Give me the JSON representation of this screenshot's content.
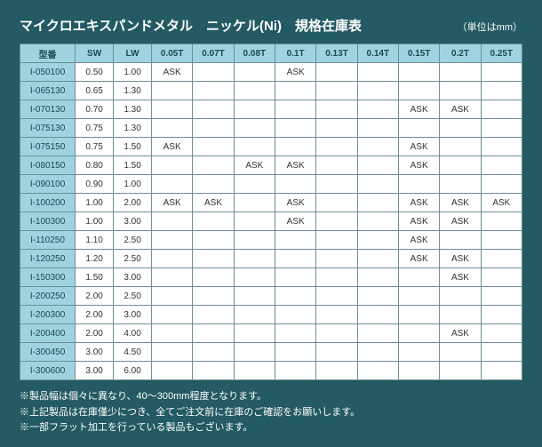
{
  "title": "マイクロエキスパンドメタル　ニッケル(Ni)　規格在庫表",
  "unit": "（単位はmm）",
  "headers": [
    "型番",
    "SW",
    "LW",
    "0.05T",
    "0.07T",
    "0.08T",
    "0.1T",
    "0.13T",
    "0.14T",
    "0.15T",
    "0.2T",
    "0.25T"
  ],
  "rows": [
    {
      "model": "I-050100",
      "sw": "0.50",
      "lw": "1.00",
      "t": [
        "ASK",
        "",
        "",
        "ASK",
        "",
        "",
        "",
        "",
        ""
      ]
    },
    {
      "model": "I-065130",
      "sw": "0.65",
      "lw": "1.30",
      "t": [
        "",
        "",
        "",
        "",
        "",
        "",
        "",
        "",
        ""
      ]
    },
    {
      "model": "I-070130",
      "sw": "0.70",
      "lw": "1.30",
      "t": [
        "",
        "",
        "",
        "",
        "",
        "",
        "ASK",
        "ASK",
        ""
      ]
    },
    {
      "model": "I-075130",
      "sw": "0.75",
      "lw": "1.30",
      "t": [
        "",
        "",
        "",
        "",
        "",
        "",
        "",
        "",
        ""
      ]
    },
    {
      "model": "I-075150",
      "sw": "0.75",
      "lw": "1.50",
      "t": [
        "ASK",
        "",
        "",
        "",
        "",
        "",
        "ASK",
        "",
        ""
      ]
    },
    {
      "model": "I-080150",
      "sw": "0.80",
      "lw": "1.50",
      "t": [
        "",
        "",
        "ASK",
        "ASK",
        "",
        "",
        "ASK",
        "",
        ""
      ]
    },
    {
      "model": "I-090100",
      "sw": "0.90",
      "lw": "1.00",
      "t": [
        "",
        "",
        "",
        "",
        "",
        "",
        "",
        "",
        ""
      ]
    },
    {
      "model": "I-100200",
      "sw": "1.00",
      "lw": "2.00",
      "t": [
        "ASK",
        "ASK",
        "",
        "ASK",
        "",
        "",
        "ASK",
        "ASK",
        "ASK"
      ]
    },
    {
      "model": "I-100300",
      "sw": "1.00",
      "lw": "3.00",
      "t": [
        "",
        "",
        "",
        "ASK",
        "",
        "",
        "ASK",
        "ASK",
        ""
      ]
    },
    {
      "model": "I-110250",
      "sw": "1.10",
      "lw": "2.50",
      "t": [
        "",
        "",
        "",
        "",
        "",
        "",
        "ASK",
        "",
        ""
      ]
    },
    {
      "model": "I-120250",
      "sw": "1.20",
      "lw": "2.50",
      "t": [
        "",
        "",
        "",
        "",
        "",
        "",
        "ASK",
        "ASK",
        ""
      ]
    },
    {
      "model": "I-150300",
      "sw": "1.50",
      "lw": "3.00",
      "t": [
        "",
        "",
        "",
        "",
        "",
        "",
        "",
        "ASK",
        ""
      ]
    },
    {
      "model": "I-200250",
      "sw": "2.00",
      "lw": "2.50",
      "t": [
        "",
        "",
        "",
        "",
        "",
        "",
        "",
        "",
        ""
      ]
    },
    {
      "model": "I-200300",
      "sw": "2.00",
      "lw": "3.00",
      "t": [
        "",
        "",
        "",
        "",
        "",
        "",
        "",
        "",
        ""
      ]
    },
    {
      "model": "I-200400",
      "sw": "2.00",
      "lw": "4.00",
      "t": [
        "",
        "",
        "",
        "",
        "",
        "",
        "",
        "ASK",
        ""
      ]
    },
    {
      "model": "I-300450",
      "sw": "3.00",
      "lw": "4.50",
      "t": [
        "",
        "",
        "",
        "",
        "",
        "",
        "",
        "",
        ""
      ]
    },
    {
      "model": "I-300600",
      "sw": "3.00",
      "lw": "6.00",
      "t": [
        "",
        "",
        "",
        "",
        "",
        "",
        "",
        "",
        ""
      ]
    }
  ],
  "notes": [
    "※製品幅は個々に異なり、40～300mm程度となります。",
    "※上記製品は在庫僅少につき、全てご注文前に在庫のご確認をお願いします。",
    "※一部フラット加工を行っている製品もございます。"
  ],
  "style": {
    "bg": "#235a63",
    "header_bg": "#9fd3e0",
    "cell_bg": "#ffffff",
    "border": "#6b8f95",
    "text_white": "#ffffff",
    "text_header": "#1a4a52"
  }
}
